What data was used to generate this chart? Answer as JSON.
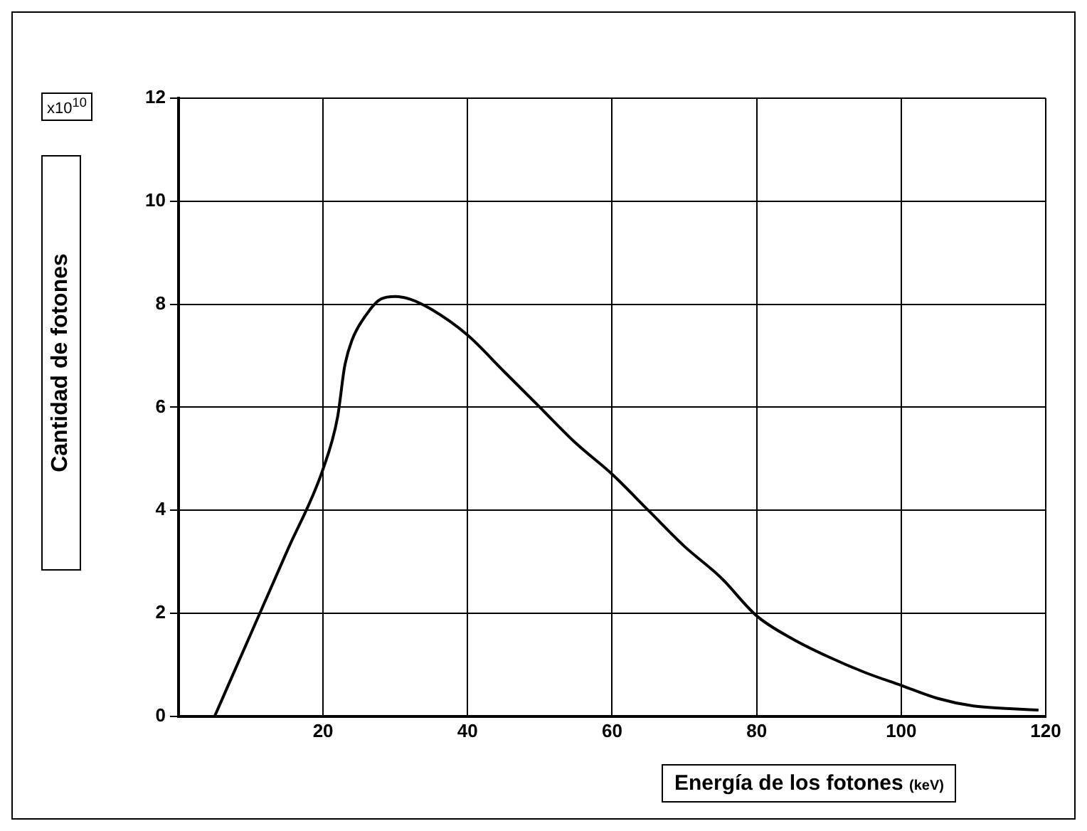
{
  "chart_data": {
    "type": "line",
    "xlabel": "Energía de los fotones (keV)",
    "ylabel": "Cantidad de fotones",
    "annotations": [
      "x10$^{10}$"
    ],
    "x": [
      5,
      10,
      15,
      20,
      22,
      23,
      24,
      26,
      28,
      30,
      32,
      35,
      40,
      45,
      50,
      55,
      60,
      65,
      70,
      75,
      80,
      85,
      90,
      95,
      100,
      105,
      110,
      115,
      119
    ],
    "series": [
      {
        "color": "#000000",
        "values": [
          0,
          1.6,
          3.2,
          4.8,
          5.8,
          6.8,
          7.3,
          7.8,
          8.1,
          8.15,
          8.1,
          7.9,
          7.4,
          6.7,
          6.0,
          5.3,
          4.7,
          4.0,
          3.3,
          2.7,
          1.95,
          1.5,
          1.15,
          0.85,
          0.6,
          0.35,
          0.2,
          0.15,
          0.12
        ]
      }
    ],
    "xlim": [
      0,
      120
    ],
    "xticks": [
      {
        "value": 0,
        "label": null
      },
      20,
      40,
      60,
      80,
      100,
      120
    ],
    "ylim": [
      0,
      12
    ],
    "yticks": [
      0,
      2,
      4,
      6,
      8,
      10,
      12
    ],
    "grid": true,
    "legend": false,
    "marker": "none",
    "line_style": "solid"
  }
}
